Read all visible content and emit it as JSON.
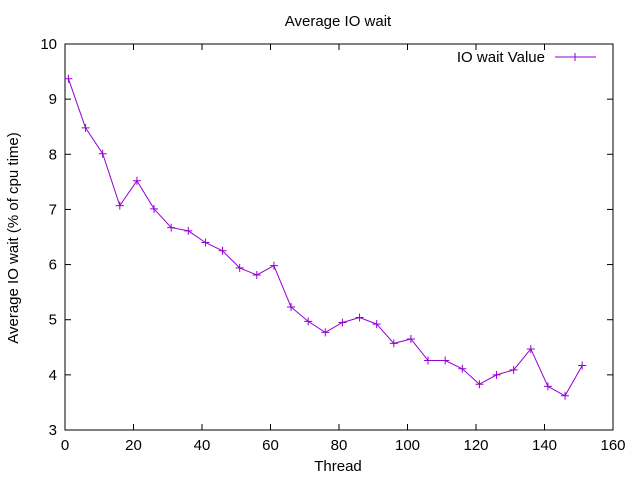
{
  "chart_data": {
    "type": "line",
    "title": "Average IO wait",
    "xlabel": "Thread",
    "ylabel": "Average IO wait (% of cpu time)",
    "xlim": [
      0,
      160
    ],
    "ylim": [
      3,
      10
    ],
    "xticks": [
      0,
      20,
      40,
      60,
      80,
      100,
      120,
      140,
      160
    ],
    "yticks": [
      3,
      4,
      5,
      6,
      7,
      8,
      9,
      10
    ],
    "grid": false,
    "legend_position": "top-right",
    "series": [
      {
        "name": "IO wait Value",
        "color": "#9400d3",
        "marker": "plus",
        "x": [
          1,
          6,
          11,
          16,
          21,
          26,
          31,
          36,
          41,
          46,
          51,
          56,
          61,
          66,
          71,
          76,
          81,
          86,
          91,
          96,
          101,
          106,
          111,
          116,
          121,
          126,
          131,
          136,
          141,
          146,
          151
        ],
        "y": [
          9.37,
          8.48,
          8.01,
          7.07,
          7.52,
          7.01,
          6.67,
          6.61,
          6.4,
          6.25,
          5.94,
          5.81,
          5.98,
          5.23,
          4.97,
          4.77,
          4.95,
          5.04,
          4.92,
          4.57,
          4.65,
          4.26,
          4.26,
          4.11,
          3.83,
          4.0,
          4.09,
          4.47,
          3.79,
          3.62,
          4.17
        ]
      }
    ]
  }
}
